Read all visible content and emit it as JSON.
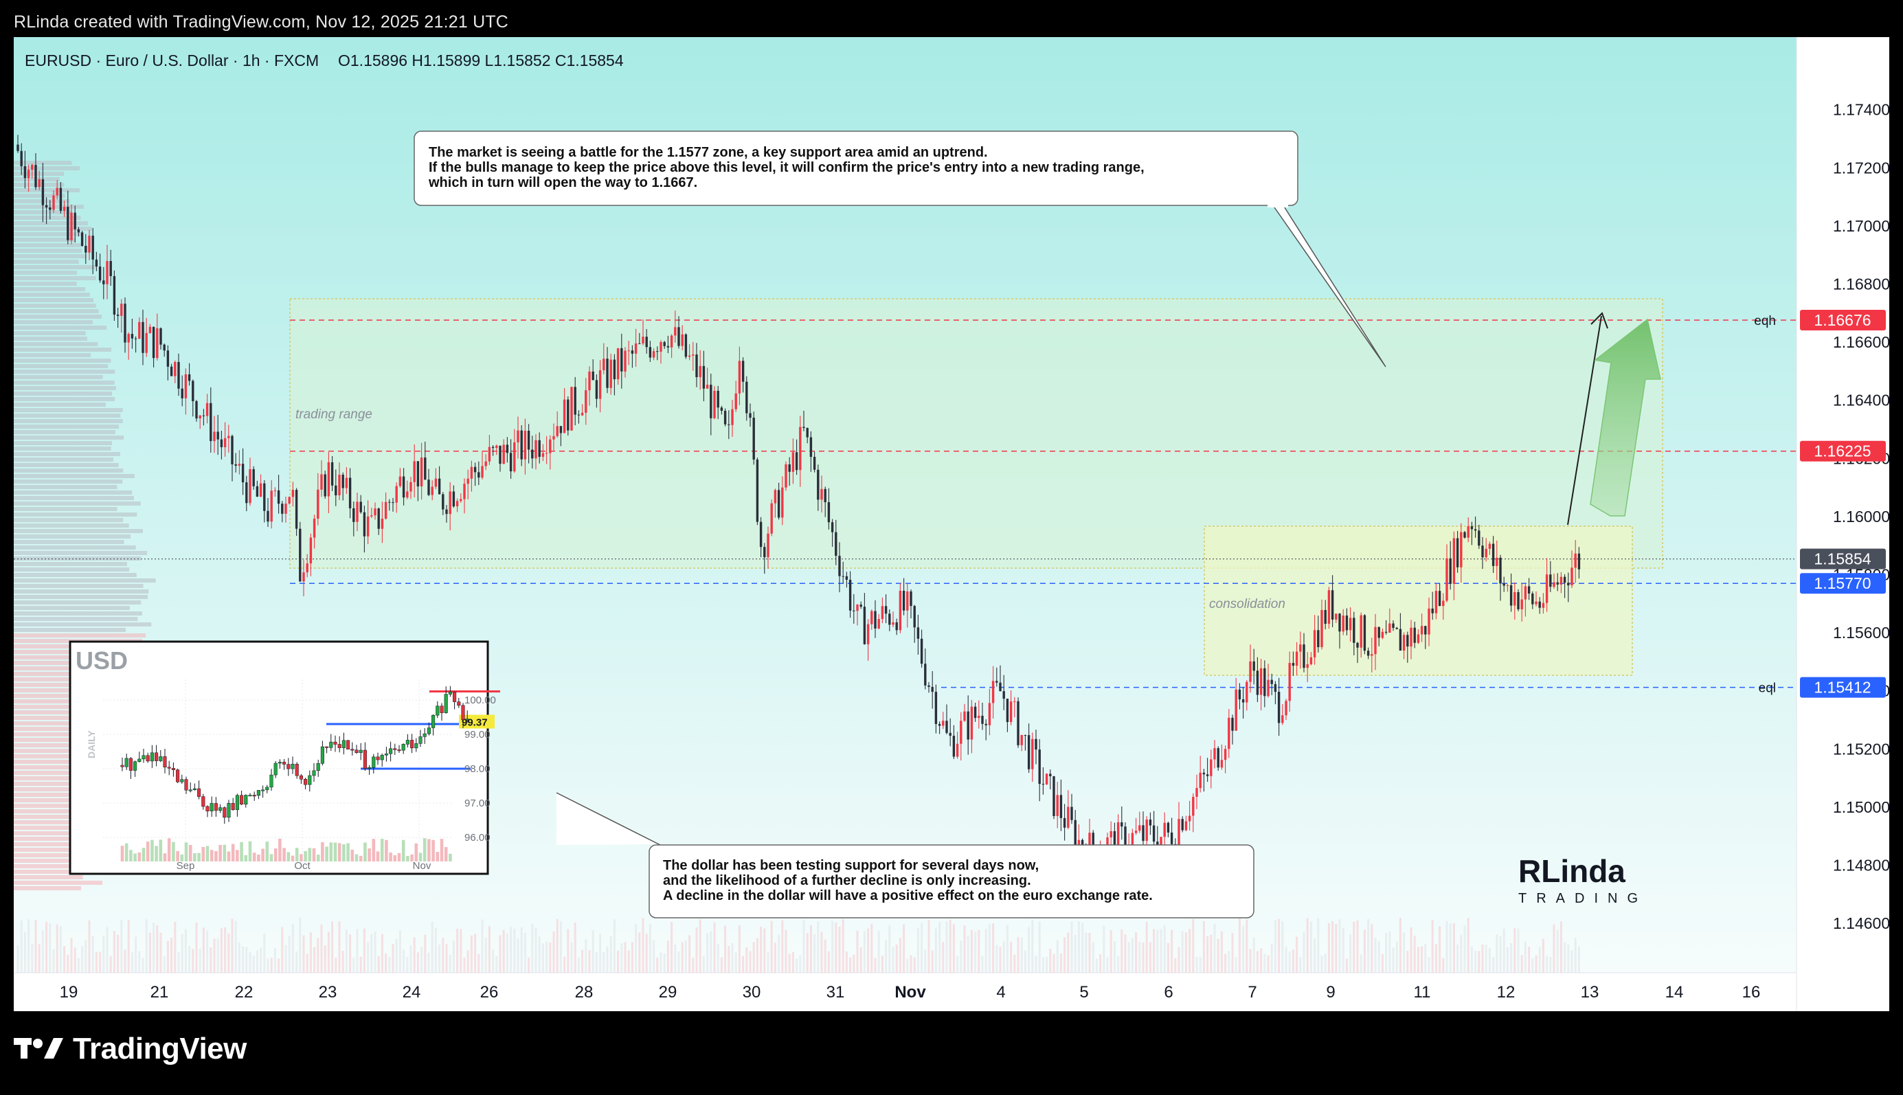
{
  "caption": "RLinda created with TradingView.com, Nov 12, 2025 21:21 UTC",
  "brand": "TradingView",
  "header": {
    "symbol": "EURUSD · Euro / U.S. Dollar · 1h · FXCM",
    "ohlc": "O1.15896  H1.15899  L1.15852  C1.15854"
  },
  "colors": {
    "up": "#f23645",
    "down": "#2a2e39",
    "bg_top": "#a9ebe6",
    "bg_bottom": "#f4fbfb",
    "resistance": "#f23645",
    "support": "#2962ff",
    "current": "#4a4f5c",
    "arrow": "#7cc576"
  },
  "annotations": {
    "top_note": [
      "The market is seeing a battle for the 1.1577 zone, a key support area amid an uptrend.",
      "If the bulls manage to keep the price above this level, it will confirm the price's entry into a new trading range,",
      "which in turn will open the way to 1.1667."
    ],
    "bottom_note": [
      "The dollar has been testing support for several days now,",
      "and the likelihood of a further decline is only increasing.",
      "A decline in the dollar will have a positive effect on the euro exchange rate."
    ],
    "trading_range_label": "trading range",
    "consolidation_label": "consolidation",
    "eqh": "eqh",
    "eql": "eql"
  },
  "logo": {
    "line1": "RLinda",
    "line2": "TRADING"
  },
  "chart_data": [
    {
      "type": "candlestick",
      "title": "EURUSD · Euro / U.S. Dollar · 1h · FXCM",
      "x_ticks": [
        "19",
        "21",
        "22",
        "23",
        "24",
        "26",
        "28",
        "29",
        "30",
        "31",
        "Nov",
        "4",
        "5",
        "6",
        "7",
        "9",
        "11",
        "12",
        "13",
        "14",
        "16"
      ],
      "y_ticks": [
        "1.17400",
        "1.17200",
        "1.17000",
        "1.16800",
        "1.16600",
        "1.16400",
        "1.16200",
        "1.16000",
        "1.15800",
        "1.15600",
        "1.15400",
        "1.15200",
        "1.15000",
        "1.14800",
        "1.14600"
      ],
      "ylim": [
        1.1443,
        1.1765
      ],
      "price_path": [
        {
          "t": "19",
          "p": 1.1728
        },
        {
          "t": "20",
          "p": 1.168
        },
        {
          "t": "20.5",
          "p": 1.1662
        },
        {
          "t": "21",
          "p": 1.166
        },
        {
          "t": "21.5",
          "p": 1.1642
        },
        {
          "t": "22",
          "p": 1.1612
        },
        {
          "t": "22.3",
          "p": 1.1602
        },
        {
          "t": "22.6",
          "p": 1.161
        },
        {
          "t": "22.8",
          "p": 1.158
        },
        {
          "t": "23",
          "p": 1.1616
        },
        {
          "t": "23.5",
          "p": 1.1595
        },
        {
          "t": "24",
          "p": 1.1618
        },
        {
          "t": "24.5",
          "p": 1.1605
        },
        {
          "t": "26",
          "p": 1.162
        },
        {
          "t": "26.5",
          "p": 1.1625
        },
        {
          "t": "27",
          "p": 1.1642
        },
        {
          "t": "28",
          "p": 1.165
        },
        {
          "t": "28.5",
          "p": 1.1664
        },
        {
          "t": "29",
          "p": 1.1648
        },
        {
          "t": "29.5",
          "p": 1.1625
        },
        {
          "t": "30",
          "p": 1.1662
        },
        {
          "t": "30.2",
          "p": 1.159
        },
        {
          "t": "30.5",
          "p": 1.1628
        },
        {
          "t": "31",
          "p": 1.1562
        },
        {
          "t": "31.5",
          "p": 1.1568
        },
        {
          "t": "Nov",
          "p": 1.1568
        },
        {
          "t": "Nov.5",
          "p": 1.1522
        },
        {
          "t": "4",
          "p": 1.154
        },
        {
          "t": "4.5",
          "p": 1.1508
        },
        {
          "t": "5",
          "p": 1.1485
        },
        {
          "t": "5.5",
          "p": 1.149
        },
        {
          "t": "6",
          "p": 1.149
        },
        {
          "t": "6.5",
          "p": 1.1512
        },
        {
          "t": "7",
          "p": 1.1548
        },
        {
          "t": "7.5",
          "p": 1.1535
        },
        {
          "t": "9",
          "p": 1.157
        },
        {
          "t": "9.5",
          "p": 1.1555
        },
        {
          "t": "11",
          "p": 1.156
        },
        {
          "t": "11.5",
          "p": 1.16
        },
        {
          "t": "12",
          "p": 1.1575
        },
        {
          "t": "12.5",
          "p": 1.157
        },
        {
          "t": "13",
          "p": 1.1585
        }
      ],
      "levels": [
        {
          "name": "eqh",
          "value": 1.16676,
          "label": "1.16676",
          "color": "#f23645"
        },
        {
          "name": "resistance",
          "value": 1.16225,
          "label": "1.16225",
          "color": "#f23645"
        },
        {
          "name": "current",
          "value": 1.15854,
          "label": "1.15854",
          "color": "#4a4f5c"
        },
        {
          "name": "support",
          "value": 1.1577,
          "label": "1.15770",
          "color": "#2962ff"
        },
        {
          "name": "eql",
          "value": 1.15412,
          "label": "1.15412",
          "color": "#2962ff"
        }
      ],
      "ohlc_last": {
        "open": 1.15896,
        "high": 1.15899,
        "low": 1.15852,
        "close": 1.15854
      }
    },
    {
      "type": "candlestick",
      "title": "USD",
      "ylabel": "DAILY",
      "x_ticks": [
        "Sep",
        "Oct",
        "Nov"
      ],
      "y_ticks": [
        "100.00",
        "99.00",
        "98.00",
        "97.00",
        "96.00"
      ],
      "ylim": [
        95.3,
        100.6
      ],
      "price_path": [
        {
          "t": "Aug-end",
          "p": 98.1
        },
        {
          "t": "Sep-early",
          "p": 98.4
        },
        {
          "t": "Sep-mid",
          "p": 97.6
        },
        {
          "t": "Sep-17",
          "p": 96.7
        },
        {
          "t": "Sep-22",
          "p": 97.2
        },
        {
          "t": "Sep-26",
          "p": 98.2
        },
        {
          "t": "Oct-1",
          "p": 97.7
        },
        {
          "t": "Oct-8",
          "p": 98.9
        },
        {
          "t": "Oct-14",
          "p": 98.3
        },
        {
          "t": "Oct-17",
          "p": 98.1
        },
        {
          "t": "Oct-22",
          "p": 98.6
        },
        {
          "t": "Oct-28",
          "p": 98.8
        },
        {
          "t": "Nov-1",
          "p": 99.8
        },
        {
          "t": "Nov-5",
          "p": 100.1
        },
        {
          "t": "Nov-8",
          "p": 99.6
        },
        {
          "t": "Nov-12",
          "p": 99.37
        }
      ],
      "levels": [
        {
          "name": "resistance",
          "value": 100.25,
          "color": "#f23645"
        },
        {
          "name": "support",
          "value": 99.3,
          "color": "#2962ff"
        },
        {
          "name": "lower_support",
          "value": 98.0,
          "color": "#2962ff"
        }
      ],
      "last_price_label": "99.37"
    }
  ]
}
